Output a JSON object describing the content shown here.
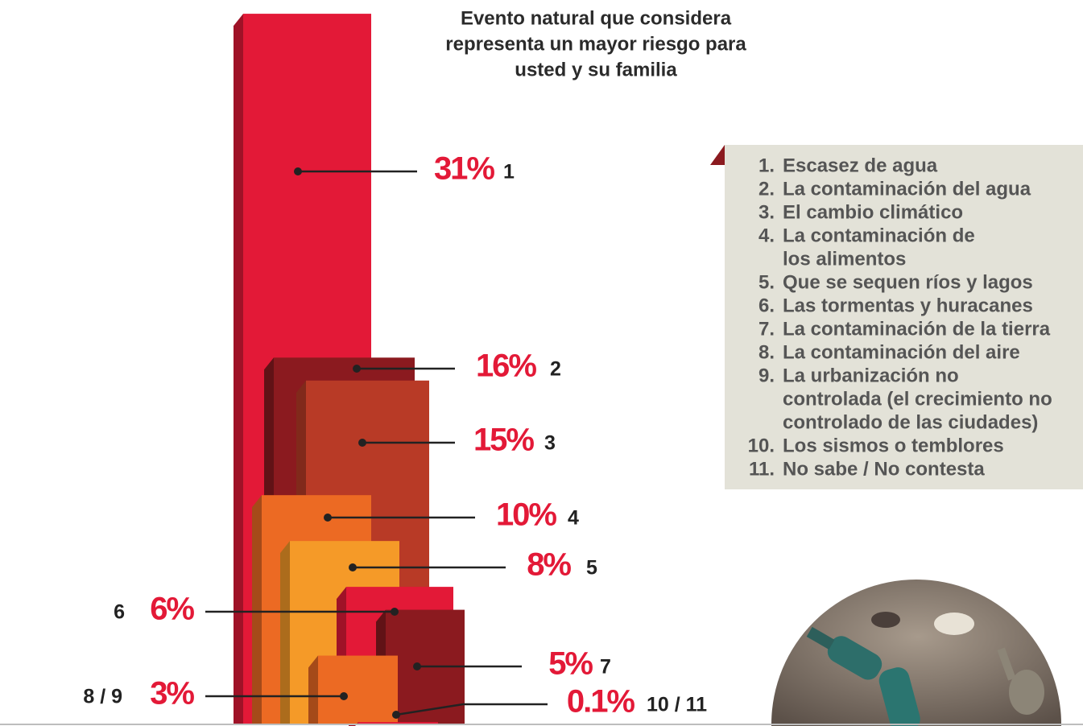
{
  "chart_data": {
    "type": "bar",
    "title_lines": [
      "Evento natural que considera",
      "representa un mayor riesgo para",
      "usted y su familia"
    ],
    "categories": [
      "1",
      "2",
      "3",
      "4",
      "5",
      "6",
      "7",
      "8 / 9",
      "10 / 11"
    ],
    "values": [
      31,
      16,
      15,
      10,
      8,
      6,
      5,
      3,
      0.1
    ],
    "value_labels": [
      "31%",
      "16%",
      "15%",
      "10%",
      "8%",
      "6%",
      "5%",
      "3%",
      "0.1%"
    ],
    "colors": [
      "#e31937",
      "#8b1a1f",
      "#b83a26",
      "#ec6a23",
      "#f59a28",
      "#e31937",
      "#8b1a1f",
      "#ec6a23",
      "#e31937"
    ],
    "ylim": [
      0,
      31.6
    ],
    "legend": {
      "items": [
        {
          "number": "1.",
          "lines": [
            "Escasez de agua"
          ]
        },
        {
          "number": "2.",
          "lines": [
            "La contaminación del agua"
          ]
        },
        {
          "number": "3.",
          "lines": [
            "El cambio climático"
          ]
        },
        {
          "number": "4.",
          "lines": [
            "La contaminación de",
            "los alimentos"
          ]
        },
        {
          "number": "5.",
          "lines": [
            "Que se sequen ríos y lagos"
          ]
        },
        {
          "number": "6.",
          "lines": [
            "Las tormentas y huracanes"
          ]
        },
        {
          "number": "7.",
          "lines": [
            "La contaminación de la tierra"
          ]
        },
        {
          "number": "8.",
          "lines": [
            "La contaminación del aire"
          ]
        },
        {
          "number": "9.",
          "lines": [
            "La urbanización no",
            "controlada (el crecimiento no",
            "controlado de las ciudades)"
          ]
        },
        {
          "number": "10.",
          "lines": [
            "Los sismos o temblores"
          ]
        },
        {
          "number": "11.",
          "lines": [
            "No sabe / No contesta"
          ]
        }
      ]
    }
  }
}
